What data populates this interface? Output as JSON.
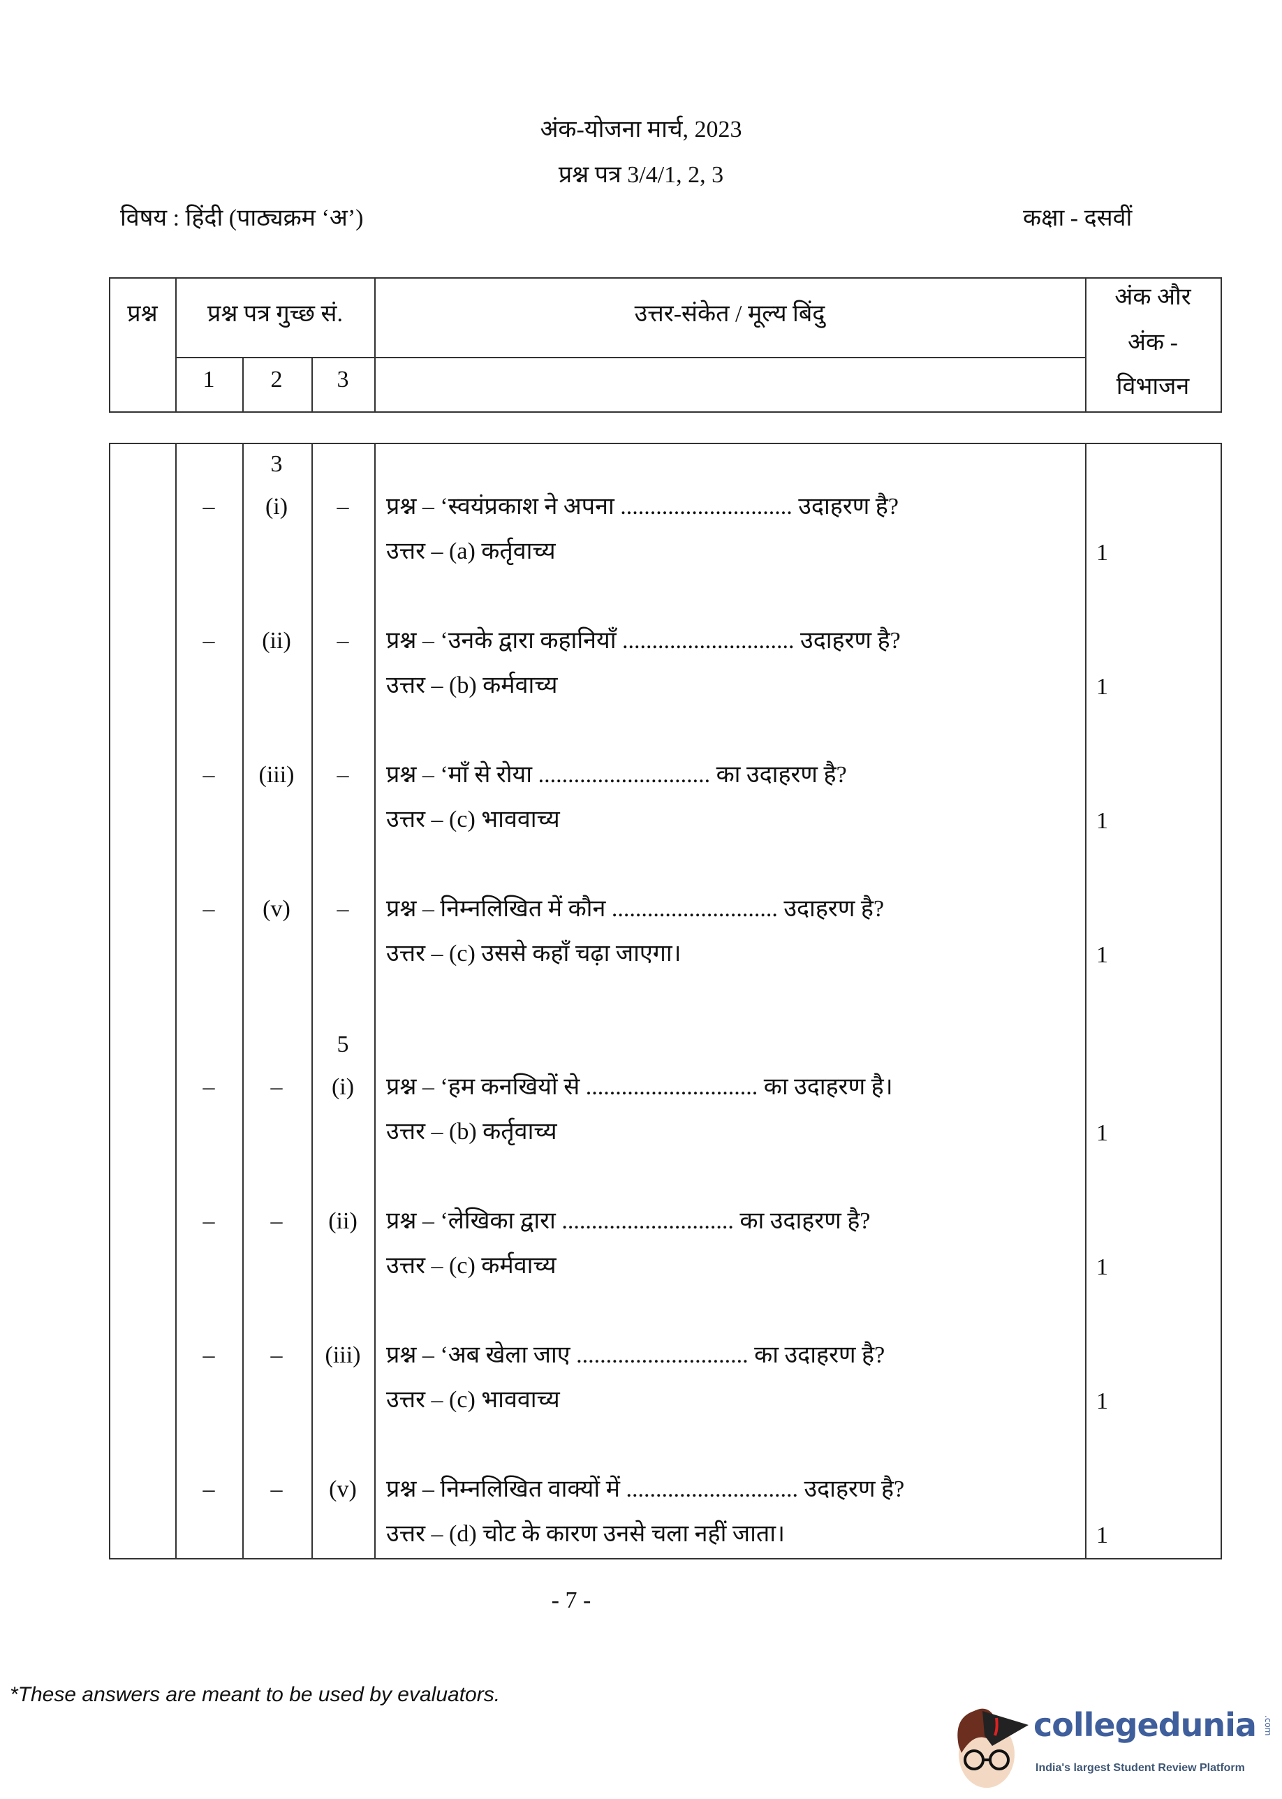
{
  "header": {
    "title": "अंक-योजना मार्च, 2023",
    "paper": "प्रश्न पत्र  3/4/1, 2, 3",
    "subject": "विषय : हिंदी (पाठ्यक्रम ‘अ’)",
    "class": "कक्षा - दसवीं"
  },
  "table_header": {
    "col_question": "प्रश्न",
    "col_set": "प्रश्न पत्र गुच्छ सं.",
    "col_answer": "उत्तर-संकेत / मूल्य बिंदु",
    "col_marks_1": "अंक और",
    "col_marks_2": "अंक -",
    "col_marks_3": "विभाजन",
    "set_1": "1",
    "set_2": "2",
    "set_3": "3"
  },
  "groups": [
    {
      "label": "3",
      "column": 2
    },
    {
      "label": "5",
      "column": 3
    }
  ],
  "rows": [
    {
      "c1": "–",
      "c2": "(i)",
      "c3": "–",
      "question": "प्रश्न – ‘स्वयंप्रकाश ने अपना ............................. उदाहरण है?",
      "answer": "उत्तर – (a) कर्तृवाच्य",
      "marks": "1"
    },
    {
      "c1": "–",
      "c2": "(ii)",
      "c3": "–",
      "question": "प्रश्न – ‘उनके द्वारा कहानियाँ ............................. उदाहरण है?",
      "answer": "उत्तर – (b) कर्मवाच्य",
      "marks": "1"
    },
    {
      "c1": "–",
      "c2": "(iii)",
      "c3": "–",
      "question": "प्रश्न – ‘माँ से रोया ............................. का उदाहरण है?",
      "answer": "उत्तर – (c) भाववाच्य",
      "marks": "1"
    },
    {
      "c1": "–",
      "c2": "(v)",
      "c3": "–",
      "question": "प्रश्न – निम्नलिखित में कौन ............................ उदाहरण है?",
      "answer": "उत्तर – (c) उससे कहाँ चढ़ा जाएगा।",
      "marks": "1"
    },
    {
      "c1": "–",
      "c2": "–",
      "c3": "(i)",
      "question": "प्रश्न – ‘हम कनखियों से ............................. का उदाहरण है।",
      "answer": "उत्तर – (b) कर्तृवाच्य",
      "marks": "1"
    },
    {
      "c1": "–",
      "c2": "–",
      "c3": "(ii)",
      "question": "प्रश्न – ‘लेखिका द्वारा ............................. का उदाहरण है?",
      "answer": "उत्तर – (c) कर्मवाच्य",
      "marks": "1"
    },
    {
      "c1": "–",
      "c2": "–",
      "c3": "(iii)",
      "question": "प्रश्न – ‘अब खेला जाए ............................. का उदाहरण है?",
      "answer": "उत्तर – (c) भाववाच्य",
      "marks": "1"
    },
    {
      "c1": "–",
      "c2": "–",
      "c3": "(v)",
      "question": "प्रश्न – निम्नलिखित वाक्यों में ............................. उदाहरण है?",
      "answer": "उत्तर – (d) चोट के कारण उनसे चला नहीं जाता।",
      "marks": "1"
    }
  ],
  "page_number": "- 7 -",
  "footnote": "*These answers are meant to be used by evaluators.",
  "logo": {
    "brand": "collegedunia",
    "suffix": ".com",
    "tagline": "India's largest Student Review Platform",
    "brand_color": "#3f5e9c"
  }
}
